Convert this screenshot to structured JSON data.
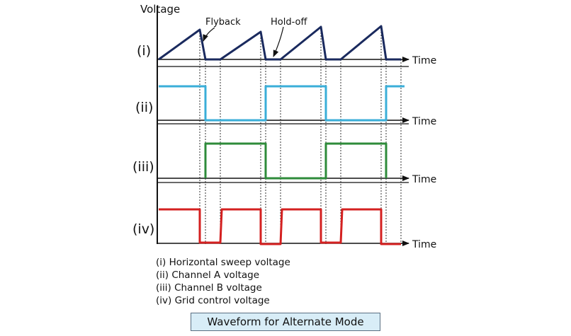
{
  "y_axis_label": "Voltage",
  "time_label": "Time",
  "annotations": {
    "flyback": "Flyback",
    "hold_off": "Hold-off"
  },
  "rows": [
    {
      "id": "i",
      "label": "(i)",
      "color": "#1a2a5e"
    },
    {
      "id": "ii",
      "label": "(ii)",
      "color": "#3aaed8"
    },
    {
      "id": "iii",
      "label": "(iii)",
      "color": "#2e8b3a"
    },
    {
      "id": "iv",
      "label": "(iv)",
      "color": "#d42020"
    }
  ],
  "legend": [
    "(i)  Horizontal sweep voltage",
    "(ii)  Channel A voltage",
    "(iii) Channel B voltage",
    "(iv) Grid control voltage"
  ],
  "caption": "Waveform for Alternate Mode"
}
